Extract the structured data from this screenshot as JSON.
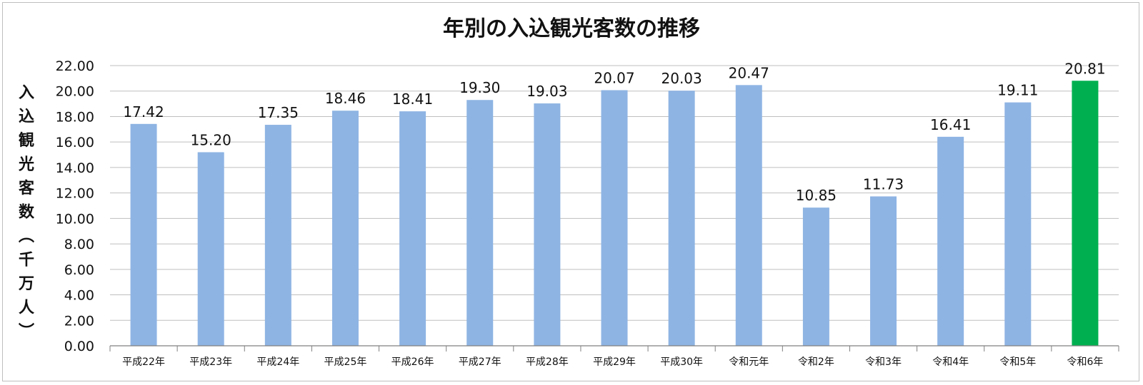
{
  "chart_data": {
    "type": "bar",
    "title": "年別の入込観光客数の推移",
    "ylabel": "入込観光客数（千万人）",
    "xlabel": "",
    "categories": [
      "平成22年",
      "平成23年",
      "平成24年",
      "平成25年",
      "平成26年",
      "平成27年",
      "平成28年",
      "平成29年",
      "平成30年",
      "令和元年",
      "令和2年",
      "令和3年",
      "令和4年",
      "令和5年",
      "令和6年"
    ],
    "values": [
      17.42,
      15.2,
      17.35,
      18.46,
      18.41,
      19.3,
      19.03,
      20.07,
      20.03,
      20.47,
      10.85,
      11.73,
      16.41,
      19.11,
      20.81
    ],
    "data_labels": [
      "17.42",
      "15.20",
      "17.35",
      "18.46",
      "18.41",
      "19.30",
      "19.03",
      "20.07",
      "20.03",
      "20.47",
      "10.85",
      "11.73",
      "16.41",
      "19.11",
      "20.81"
    ],
    "yticks": [
      "0.00",
      "2.00",
      "4.00",
      "6.00",
      "8.00",
      "10.00",
      "12.00",
      "14.00",
      "16.00",
      "18.00",
      "20.00",
      "22.00"
    ],
    "ylim": [
      0,
      22
    ],
    "grid": true,
    "legend": "none",
    "colors": {
      "bar": "#8eb4e3",
      "highlight": "#00b050",
      "grid": "#bfbfbf",
      "axis": "#808080"
    },
    "highlight_index": 14
  }
}
